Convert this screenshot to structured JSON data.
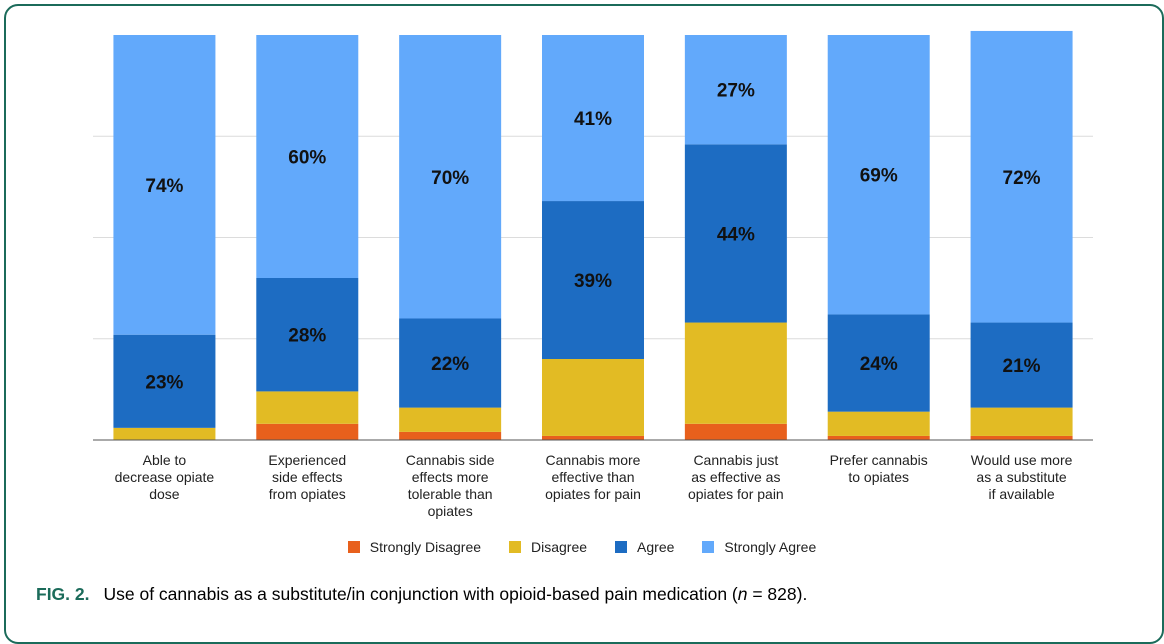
{
  "colors": {
    "Strongly Disagree": "#e8601c",
    "Disagree": "#e2bb24",
    "Agree": "#1d6cc2",
    "Strongly Agree": "#62a9fb",
    "frame": "#1b6b5a"
  },
  "chart_data": {
    "type": "bar",
    "stacked": true,
    "categories": [
      "Able to decrease opiate dose",
      "Experienced side effects from opiates",
      "Cannabis side effects more tolerable than opiates",
      "Cannabis more effective than opiates for pain",
      "Cannabis just as effective as opiates for pain",
      "Prefer cannabis to opiates",
      "Would use more as a substitute if available"
    ],
    "category_lines": [
      [
        "Able to",
        "decrease opiate",
        "dose"
      ],
      [
        "Experienced",
        "side effects",
        "from opiates"
      ],
      [
        "Cannabis side",
        "effects more",
        "tolerable than",
        "opiates"
      ],
      [
        "Cannabis more",
        "effective than",
        "opiates for pain"
      ],
      [
        "Cannabis just",
        "as effective as",
        "opiates for pain"
      ],
      [
        "Prefer cannabis",
        "to opiates"
      ],
      [
        "Would use more",
        "as a substitute",
        "if available"
      ]
    ],
    "series": [
      {
        "name": "Strongly Disagree",
        "values": [
          0,
          4,
          2,
          1,
          4,
          1,
          1
        ]
      },
      {
        "name": "Disagree",
        "values": [
          3,
          8,
          6,
          19,
          25,
          6,
          7
        ]
      },
      {
        "name": "Agree",
        "values": [
          23,
          28,
          22,
          39,
          44,
          24,
          21
        ]
      },
      {
        "name": "Strongly Agree",
        "values": [
          74,
          60,
          70,
          41,
          27,
          69,
          72
        ]
      }
    ],
    "data_labels": {
      "Agree": [
        "23%",
        "28%",
        "22%",
        "39%",
        "44%",
        "24%",
        "21%"
      ],
      "Strongly Agree": [
        "74%",
        "60%",
        "70%",
        "41%",
        "27%",
        "69%",
        "72%"
      ]
    },
    "legend": [
      "Strongly Disagree",
      "Disagree",
      "Agree",
      "Strongly Agree"
    ],
    "legend_position": "bottom",
    "ylim": [
      0,
      100
    ],
    "grid": true,
    "xlabel": "",
    "ylabel": ""
  },
  "caption": {
    "label": "FIG. 2.",
    "text": "Use of cannabis as a substitute/in conjunction with opioid-based pain medication (",
    "n_symbol": "n",
    "n_value": " = 828)."
  }
}
